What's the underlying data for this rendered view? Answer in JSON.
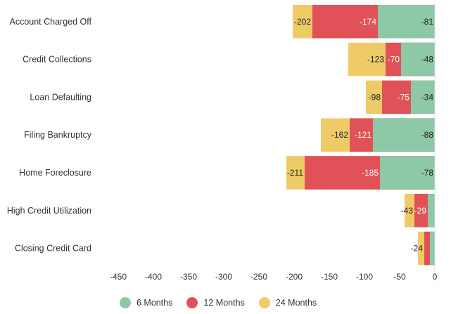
{
  "chart_data": {
    "type": "bar",
    "orientation": "horizontal",
    "stacked": true,
    "categories": [
      "Account Charged Off",
      "Credit Collections",
      "Loan Defaulting",
      "Filing Bankruptcy",
      "Home Foreclosure",
      "High Credit Utilization",
      "Closing Credit Card"
    ],
    "series": [
      {
        "name": "6 Months",
        "color": "#8dc8a7",
        "values": [
          -81,
          -48,
          -34,
          -88,
          -78,
          -10,
          -7
        ],
        "labels": [
          "-81",
          "-48",
          "-34",
          "-88",
          "-78",
          "",
          ""
        ]
      },
      {
        "name": "12 Months",
        "color": "#e05257",
        "values": [
          -174,
          -70,
          -75,
          -121,
          -185,
          -29,
          -15
        ],
        "labels": [
          "-174",
          "-70",
          "-75",
          "-121",
          "-185",
          "-29",
          ""
        ]
      },
      {
        "name": "24 Months",
        "color": "#efcb68",
        "values": [
          -202,
          -123,
          -98,
          -162,
          -211,
          -43,
          -24
        ],
        "labels": [
          "-202",
          "-123",
          "-98",
          "-162",
          "-211",
          "-43",
          "-24"
        ]
      }
    ],
    "xlim": [
      -460,
      8
    ],
    "xticks": [
      -450,
      -400,
      -350,
      -300,
      -250,
      -200,
      -150,
      -100,
      -50,
      0
    ],
    "legend_position": "bottom",
    "grid": false
  }
}
